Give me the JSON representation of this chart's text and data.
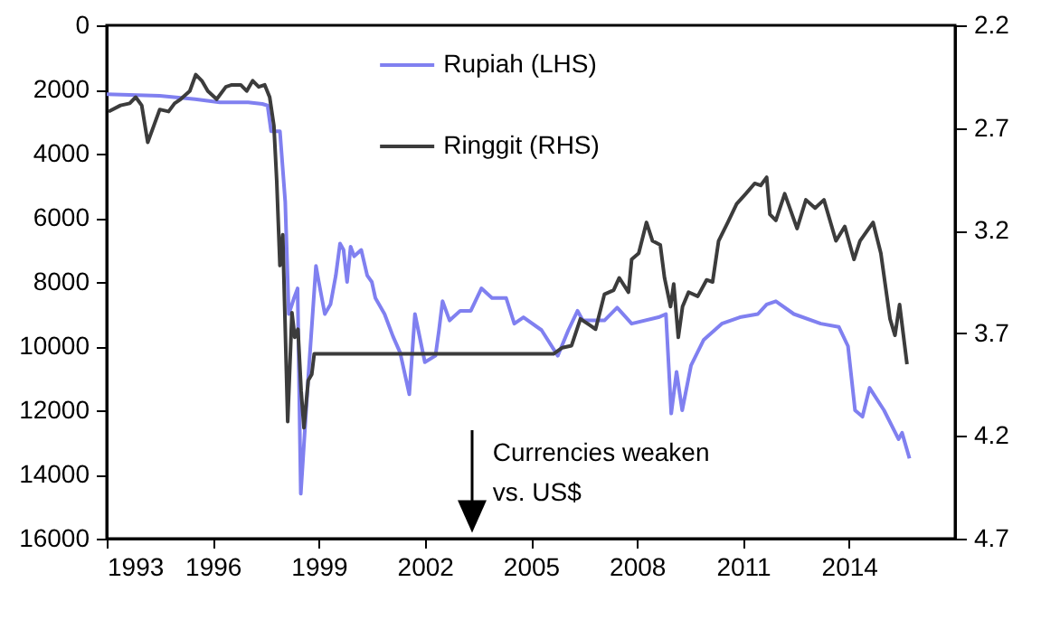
{
  "chart_data": {
    "type": "line",
    "xlim": [
      1993,
      2017
    ],
    "xticks": [
      1993,
      1996,
      1999,
      2002,
      2005,
      2008,
      2011,
      2014
    ],
    "ylim": [
      16000,
      0
    ],
    "yticks": [
      0,
      2000,
      4000,
      6000,
      8000,
      10000,
      12000,
      14000,
      16000
    ],
    "y2lim": [
      4.7,
      2.2
    ],
    "y2ticks": [
      2.2,
      2.7,
      3.2,
      3.7,
      4.2,
      4.7
    ],
    "legend": "top",
    "grid": false,
    "marker": "none",
    "line_style": "solid",
    "annotations": [
      "Currencies weaken\nvs. US$"
    ],
    "series": [
      {
        "name": "Rupiah (LHS)",
        "color": "#8080f0",
        "x": [
          1993.0,
          1994.5,
          1995.5,
          1996.2,
          1997.0,
          1997.4,
          1997.55,
          1997.65,
          1997.9,
          1998.05,
          1998.15,
          1998.3,
          1998.4,
          1998.49,
          1998.7,
          1998.92,
          1999.0,
          1999.17,
          1999.33,
          1999.48,
          1999.6,
          1999.7,
          1999.8,
          1999.9,
          2000.0,
          2000.2,
          2000.37,
          2000.5,
          2000.6,
          2000.86,
          2001.1,
          2001.3,
          2001.56,
          2001.72,
          2002.0,
          2002.3,
          2002.4,
          2002.5,
          2002.7,
          2003.0,
          2003.3,
          2003.6,
          2003.9,
          2004.3,
          2004.53,
          2004.79,
          2005.3,
          2005.76,
          2006.06,
          2006.32,
          2006.47,
          2007.08,
          2007.44,
          2007.85,
          2008.61,
          2008.82,
          2008.97,
          2009.12,
          2009.28,
          2009.53,
          2009.89,
          2010.4,
          2010.91,
          2011.42,
          2011.67,
          2011.93,
          2012.44,
          2013.2,
          2013.71,
          2013.97,
          2014.17,
          2014.38,
          2014.58,
          2014.99,
          2015.4,
          2015.5,
          2015.71
        ],
        "values": [
          2150,
          2200,
          2300,
          2400,
          2400,
          2450,
          2500,
          3300,
          3300,
          5500,
          9000,
          8500,
          8200,
          14600,
          11000,
          7500,
          8000,
          9000,
          8700,
          7800,
          6800,
          7000,
          8000,
          6900,
          7200,
          7000,
          7800,
          8000,
          8500,
          9000,
          9700,
          10200,
          11500,
          9000,
          10500,
          10300,
          9500,
          8600,
          9200,
          8900,
          8900,
          8200,
          8500,
          8500,
          9300,
          9100,
          9500,
          10300,
          9500,
          8900,
          9200,
          9200,
          8800,
          9300,
          9100,
          9000,
          12100,
          10800,
          12000,
          10600,
          9800,
          9300,
          9100,
          9000,
          8700,
          8600,
          9000,
          9300,
          9400,
          10000,
          12000,
          12200,
          11300,
          12000,
          12900,
          12700,
          13500
        ]
      },
      {
        "name": "Ringgit (RHS)",
        "color": "#3c3c3c",
        "axis": "y2",
        "x": [
          1993.05,
          1993.39,
          1993.65,
          1993.82,
          1993.99,
          1994.16,
          1994.33,
          1994.5,
          1994.75,
          1994.92,
          1995.09,
          1995.35,
          1995.52,
          1995.69,
          1995.86,
          1996.11,
          1996.37,
          1996.54,
          1996.79,
          1996.96,
          1997.13,
          1997.3,
          1997.47,
          1997.61,
          1997.73,
          1997.81,
          1997.9,
          1997.98,
          1998.12,
          1998.24,
          1998.32,
          1998.41,
          1998.5,
          1998.58,
          1998.7,
          1998.8,
          1998.87,
          2005.64,
          2005.89,
          2006.15,
          2006.4,
          2006.66,
          2006.83,
          2007.08,
          2007.34,
          2007.5,
          2007.76,
          2007.85,
          2008.05,
          2008.27,
          2008.44,
          2008.66,
          2008.78,
          2008.95,
          2009.04,
          2009.17,
          2009.29,
          2009.46,
          2009.72,
          2009.97,
          2010.14,
          2010.31,
          2010.57,
          2010.82,
          2011.08,
          2011.33,
          2011.5,
          2011.67,
          2011.76,
          2011.93,
          2012.18,
          2012.53,
          2012.78,
          2013.04,
          2013.29,
          2013.63,
          2013.88,
          2014.14,
          2014.31,
          2014.68,
          2014.9,
          2015.16,
          2015.3,
          2015.43,
          2015.64
        ],
        "values": [
          2.62,
          2.59,
          2.58,
          2.55,
          2.59,
          2.77,
          2.69,
          2.61,
          2.62,
          2.58,
          2.56,
          2.52,
          2.44,
          2.47,
          2.52,
          2.56,
          2.5,
          2.49,
          2.49,
          2.52,
          2.47,
          2.5,
          2.49,
          2.55,
          2.69,
          2.96,
          3.37,
          3.22,
          4.13,
          3.6,
          3.72,
          3.68,
          3.98,
          4.16,
          3.93,
          3.9,
          3.8,
          3.8,
          3.77,
          3.76,
          3.63,
          3.66,
          3.68,
          3.51,
          3.49,
          3.43,
          3.5,
          3.34,
          3.31,
          3.16,
          3.25,
          3.27,
          3.43,
          3.57,
          3.46,
          3.72,
          3.57,
          3.5,
          3.52,
          3.44,
          3.45,
          3.25,
          3.16,
          3.07,
          3.02,
          2.97,
          2.98,
          2.94,
          3.12,
          3.15,
          3.02,
          3.19,
          3.05,
          3.09,
          3.05,
          3.25,
          3.18,
          3.34,
          3.25,
          3.16,
          3.31,
          3.63,
          3.71,
          3.56,
          3.85
        ]
      }
    ]
  }
}
